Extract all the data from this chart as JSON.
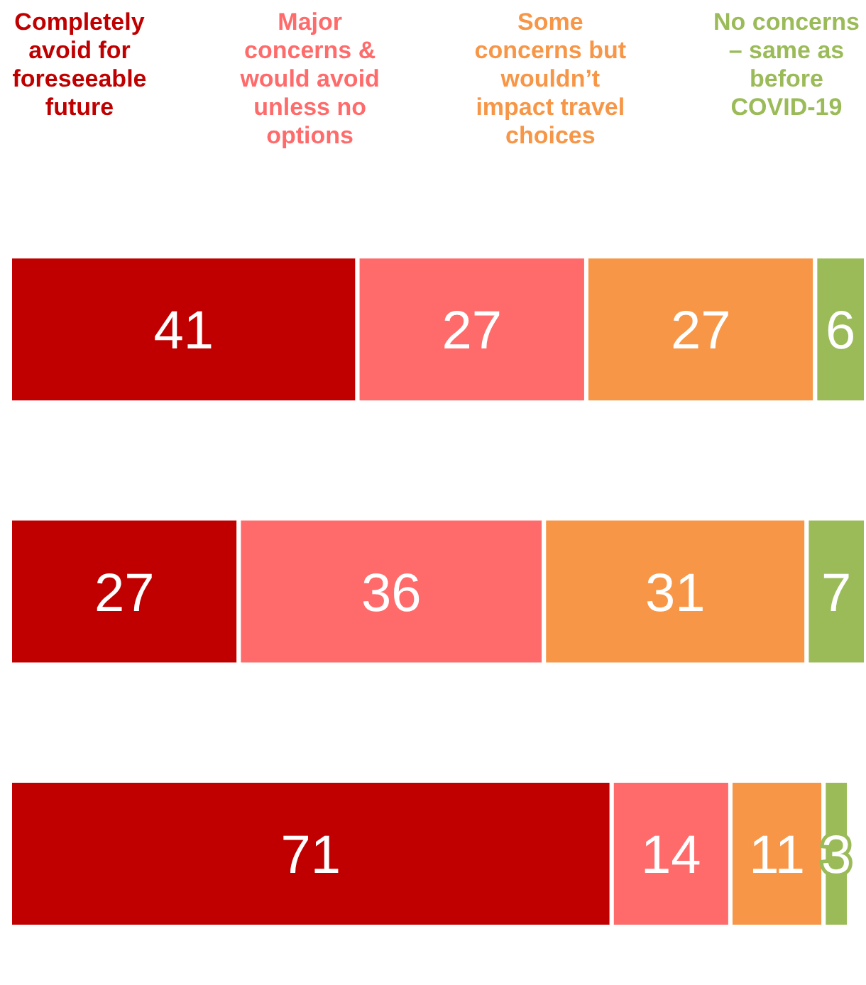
{
  "chart_data": {
    "type": "bar",
    "orientation": "horizontal",
    "stacked": true,
    "categories": [
      null,
      null,
      null
    ],
    "series": [
      {
        "name": "Completely avoid for foreseeable future",
        "color": "#c00000",
        "values": [
          41,
          27,
          71
        ]
      },
      {
        "name": "Major concerns & would avoid unless no options",
        "color": "#ff6b6b",
        "values": [
          27,
          36,
          14
        ]
      },
      {
        "name": "Some concerns but wouldn’t impact travel choices",
        "color": "#f79646",
        "values": [
          27,
          31,
          11
        ]
      },
      {
        "name": "No concerns – same as before COVID-19",
        "color": "#9bbb59",
        "values": [
          6,
          7,
          3
        ]
      }
    ],
    "xlim": [
      0,
      101
    ],
    "data_labels": true,
    "legend": "top",
    "tick_labels": false,
    "grid": false
  }
}
